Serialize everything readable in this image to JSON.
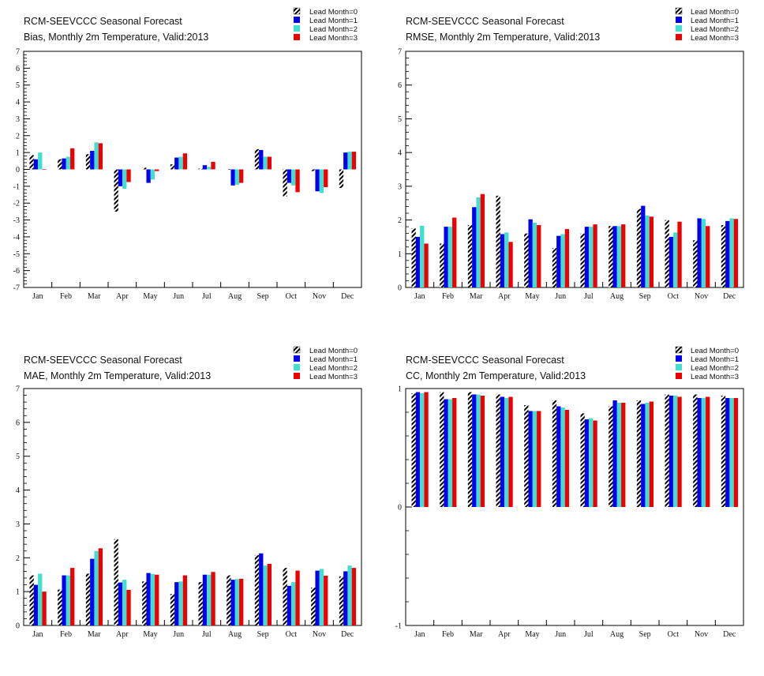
{
  "chart_data": [
    {
      "type": "bar",
      "title": "RCM-SEEVCCC Seasonal Forecast",
      "subtitle": "Bias, Monthly 2m Temperature, Valid:2013",
      "categories": [
        "Jan",
        "Feb",
        "Mar",
        "Apr",
        "May",
        "Jun",
        "Jul",
        "Aug",
        "Sep",
        "Oct",
        "Nov",
        "Dec"
      ],
      "ylim": [
        -7,
        7
      ],
      "yticks": [
        -7,
        -6,
        -5,
        -4,
        -3,
        -2,
        -1,
        0,
        1,
        2,
        3,
        4,
        5,
        6,
        7
      ],
      "legend_position": "top-right",
      "series": [
        {
          "name": "Lead Month=0",
          "color": "#000000",
          "pattern": "hatched",
          "values": [
            0.85,
            0.6,
            0.9,
            -2.5,
            0.1,
            0.3,
            0.05,
            0.02,
            1.2,
            -1.6,
            -0.1,
            -1.1
          ]
        },
        {
          "name": "Lead Month=1",
          "color": "#0000ee",
          "values": [
            0.6,
            0.65,
            1.1,
            -1.0,
            -0.8,
            0.7,
            0.25,
            -0.95,
            1.15,
            -0.8,
            -1.3,
            1.0
          ]
        },
        {
          "name": "Lead Month=2",
          "color": "#40e0d0",
          "values": [
            1.0,
            0.75,
            1.6,
            -1.15,
            -0.6,
            0.75,
            0.15,
            -0.9,
            0.75,
            -0.95,
            -1.4,
            1.05
          ]
        },
        {
          "name": "Lead Month=3",
          "color": "#ee0000",
          "values": [
            0.02,
            1.25,
            1.55,
            -0.75,
            -0.1,
            0.95,
            0.45,
            -0.8,
            0.75,
            -1.35,
            -1.05,
            1.05
          ]
        }
      ]
    },
    {
      "type": "bar",
      "title": "RCM-SEEVCCC Seasonal Forecast",
      "subtitle": "RMSE, Monthly 2m Temperature, Valid:2013",
      "categories": [
        "Jan",
        "Feb",
        "Mar",
        "Apr",
        "May",
        "Jun",
        "Jul",
        "Aug",
        "Sep",
        "Oct",
        "Nov",
        "Dec"
      ],
      "ylim": [
        0,
        7
      ],
      "yticks": [
        0,
        1,
        2,
        3,
        4,
        5,
        6,
        7
      ],
      "legend_position": "top-right",
      "series": [
        {
          "name": "Lead Month=0",
          "color": "#000000",
          "pattern": "hatched",
          "values": [
            1.75,
            1.3,
            1.85,
            2.72,
            1.6,
            1.17,
            1.6,
            1.82,
            2.33,
            2.0,
            1.4,
            1.85
          ]
        },
        {
          "name": "Lead Month=1",
          "color": "#0000ee",
          "values": [
            1.5,
            1.8,
            2.38,
            1.58,
            2.02,
            1.53,
            1.8,
            1.82,
            2.42,
            1.5,
            2.05,
            1.97
          ]
        },
        {
          "name": "Lead Month=2",
          "color": "#40e0d0",
          "values": [
            1.83,
            1.8,
            2.67,
            1.63,
            1.92,
            1.58,
            1.8,
            1.82,
            2.13,
            1.63,
            2.03,
            2.05
          ]
        },
        {
          "name": "Lead Month=3",
          "color": "#ee0000",
          "values": [
            1.3,
            2.07,
            2.77,
            1.35,
            1.85,
            1.73,
            1.87,
            1.87,
            2.1,
            1.95,
            1.82,
            2.03
          ]
        }
      ]
    },
    {
      "type": "bar",
      "title": "RCM-SEEVCCC Seasonal Forecast",
      "subtitle": "MAE, Monthly 2m Temperature, Valid:2013",
      "categories": [
        "Jan",
        "Feb",
        "Mar",
        "Apr",
        "May",
        "Jun",
        "Jul",
        "Aug",
        "Sep",
        "Oct",
        "Nov",
        "Dec"
      ],
      "ylim": [
        0,
        7
      ],
      "yticks": [
        0,
        1,
        2,
        3,
        4,
        5,
        6,
        7
      ],
      "legend_position": "top-right",
      "series": [
        {
          "name": "Lead Month=0",
          "color": "#000000",
          "pattern": "hatched",
          "values": [
            1.48,
            1.06,
            1.53,
            2.55,
            1.3,
            0.93,
            1.28,
            1.48,
            2.08,
            1.7,
            1.12,
            1.45
          ]
        },
        {
          "name": "Lead Month=1",
          "color": "#0000ee",
          "values": [
            1.2,
            1.48,
            1.97,
            1.27,
            1.55,
            1.28,
            1.5,
            1.35,
            2.13,
            1.17,
            1.62,
            1.6
          ]
        },
        {
          "name": "Lead Month=2",
          "color": "#40e0d0",
          "values": [
            1.53,
            1.48,
            2.2,
            1.35,
            1.52,
            1.3,
            1.5,
            1.37,
            1.77,
            1.28,
            1.67,
            1.77
          ]
        },
        {
          "name": "Lead Month=3",
          "color": "#ee0000",
          "values": [
            1.0,
            1.7,
            2.28,
            1.05,
            1.5,
            1.48,
            1.58,
            1.38,
            1.82,
            1.62,
            1.47,
            1.7
          ]
        }
      ]
    },
    {
      "type": "bar",
      "title": "RCM-SEEVCCC Seasonal Forecast",
      "subtitle": "CC, Monthly 2m Temperature, Valid:2013",
      "categories": [
        "Jan",
        "Feb",
        "Mar",
        "Apr",
        "May",
        "Jun",
        "Jul",
        "Aug",
        "Sep",
        "Oct",
        "Nov",
        "Dec"
      ],
      "ylim": [
        -1,
        1
      ],
      "yticks": [
        -1,
        0,
        1
      ],
      "legend_position": "top-right",
      "series": [
        {
          "name": "Lead Month=0",
          "color": "#000000",
          "pattern": "hatched",
          "values": [
            0.96,
            0.97,
            0.97,
            0.95,
            0.86,
            0.9,
            0.79,
            0.85,
            0.9,
            0.95,
            0.95,
            0.94
          ]
        },
        {
          "name": "Lead Month=1",
          "color": "#0000ee",
          "values": [
            0.97,
            0.91,
            0.95,
            0.93,
            0.81,
            0.85,
            0.74,
            0.9,
            0.87,
            0.94,
            0.92,
            0.92
          ]
        },
        {
          "name": "Lead Month=2",
          "color": "#40e0d0",
          "values": [
            0.96,
            0.91,
            0.95,
            0.92,
            0.81,
            0.84,
            0.75,
            0.88,
            0.88,
            0.94,
            0.92,
            0.92
          ]
        },
        {
          "name": "Lead Month=3",
          "color": "#ee0000",
          "values": [
            0.97,
            0.92,
            0.94,
            0.93,
            0.81,
            0.82,
            0.73,
            0.88,
            0.89,
            0.93,
            0.93,
            0.92
          ]
        }
      ]
    }
  ]
}
